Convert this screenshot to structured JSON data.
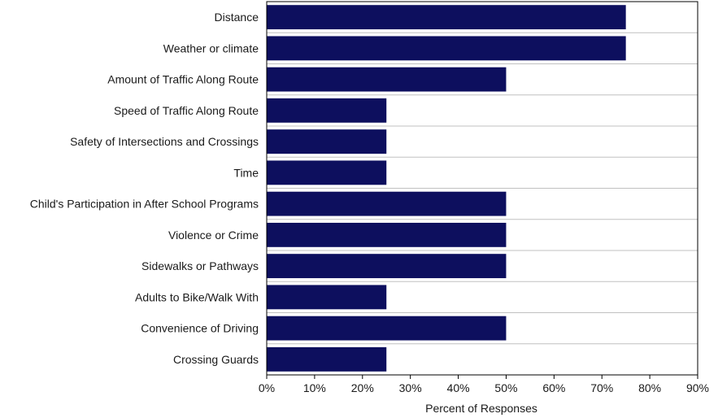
{
  "chart_data": {
    "type": "bar",
    "orientation": "horizontal",
    "categories": [
      "Distance",
      "Weather or climate",
      "Amount of Traffic Along Route",
      "Speed of Traffic Along Route",
      "Safety of Intersections and Crossings",
      "Time",
      "Child's Participation in After School Programs",
      "Violence or Crime",
      "Sidewalks or Pathways",
      "Adults to Bike/Walk With",
      "Convenience of Driving",
      "Crossing Guards"
    ],
    "values": [
      75,
      75,
      50,
      25,
      25,
      25,
      50,
      50,
      50,
      25,
      50,
      25
    ],
    "xlabel": "Percent of Responses",
    "ylabel": "",
    "xlim": [
      0,
      90
    ],
    "xticks": [
      "0%",
      "10%",
      "20%",
      "30%",
      "40%",
      "50%",
      "60%",
      "70%",
      "80%",
      "90%"
    ],
    "grid": true,
    "legend": "none",
    "colors": {
      "bar": "#0d0f5e",
      "grid": "#c0c0c0",
      "axis": "#000000"
    }
  }
}
